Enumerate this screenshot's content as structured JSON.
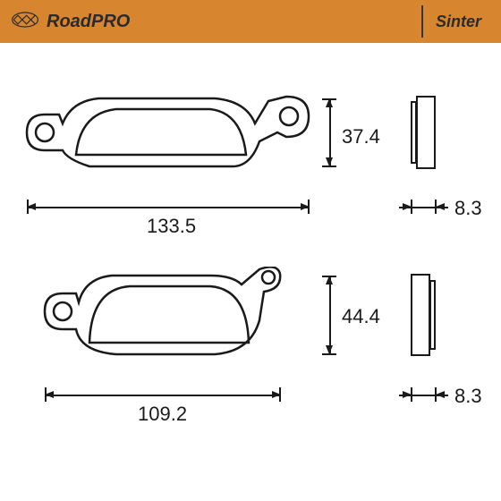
{
  "header": {
    "product_name": "RoadPRO",
    "variant": "Sinter",
    "bg_color": "#d8852f",
    "text_color": "#2b2b2b"
  },
  "diagram": {
    "stroke_color": "#1a1a1a",
    "fill_color": "#ffffff",
    "pad_top": {
      "width_mm": 133.5,
      "height_mm": 37.4,
      "thickness_mm": 8.3
    },
    "pad_bottom": {
      "width_mm": 109.2,
      "height_mm": 44.4,
      "thickness_mm": 8.3
    },
    "label_fontsize": 22
  }
}
